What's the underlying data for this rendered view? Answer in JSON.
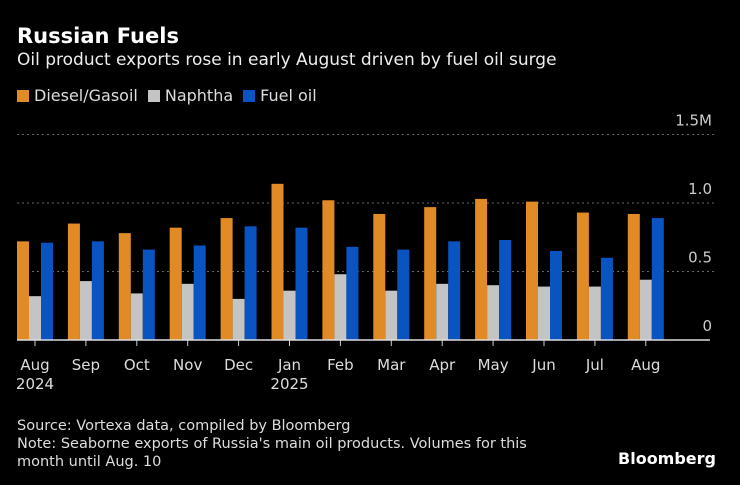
{
  "chart_data": {
    "type": "bar",
    "title": "Russian Fuels",
    "subtitle": "Oil product exports rose in early August driven by fuel oil surge",
    "categories": [
      "Aug 2024",
      "Sep",
      "Oct",
      "Nov",
      "Dec",
      "Jan 2025",
      "Feb",
      "Mar",
      "Apr",
      "May",
      "Jun",
      "Jul",
      "Aug"
    ],
    "x_tick_labels": [
      [
        "Aug",
        "2024"
      ],
      [
        "Sep",
        ""
      ],
      [
        "Oct",
        ""
      ],
      [
        "Nov",
        ""
      ],
      [
        "Dec",
        ""
      ],
      [
        "Jan",
        "2025"
      ],
      [
        "Feb",
        ""
      ],
      [
        "Mar",
        ""
      ],
      [
        "Apr",
        ""
      ],
      [
        "May",
        ""
      ],
      [
        "Jun",
        ""
      ],
      [
        "Jul",
        ""
      ],
      [
        "Aug",
        ""
      ]
    ],
    "series": [
      {
        "name": "Diesel/Gasoil",
        "color": "#e08b25",
        "values": [
          0.72,
          0.85,
          0.78,
          0.82,
          0.89,
          1.14,
          1.02,
          0.92,
          0.97,
          1.03,
          1.01,
          0.93,
          0.92
        ]
      },
      {
        "name": "Naphtha",
        "color": "#c4c4c4",
        "values": [
          0.32,
          0.43,
          0.34,
          0.41,
          0.3,
          0.36,
          0.48,
          0.36,
          0.41,
          0.4,
          0.39,
          0.39,
          0.44
        ]
      },
      {
        "name": "Fuel oil",
        "color": "#0a54c2",
        "values": [
          0.71,
          0.72,
          0.66,
          0.69,
          0.83,
          0.82,
          0.68,
          0.66,
          0.72,
          0.73,
          0.65,
          0.6,
          0.89
        ]
      }
    ],
    "y_ticks": [
      {
        "value": 0,
        "label": "0"
      },
      {
        "value": 0.5,
        "label": "0.5"
      },
      {
        "value": 1.0,
        "label": "1.0"
      },
      {
        "value": 1.5,
        "label": "1.5M"
      }
    ],
    "ylim": [
      0,
      1.5
    ],
    "xlabel": "",
    "ylabel": "",
    "grid": "horizontal dotted",
    "legend": "top-left"
  },
  "footer": {
    "source": "Source: Vortexa data, compiled by Bloomberg",
    "note_line1": "Note: Seaborne exports of Russia's main oil products. Volumes for this",
    "note_line2": "month until Aug. 10",
    "brand": "Bloomberg"
  }
}
